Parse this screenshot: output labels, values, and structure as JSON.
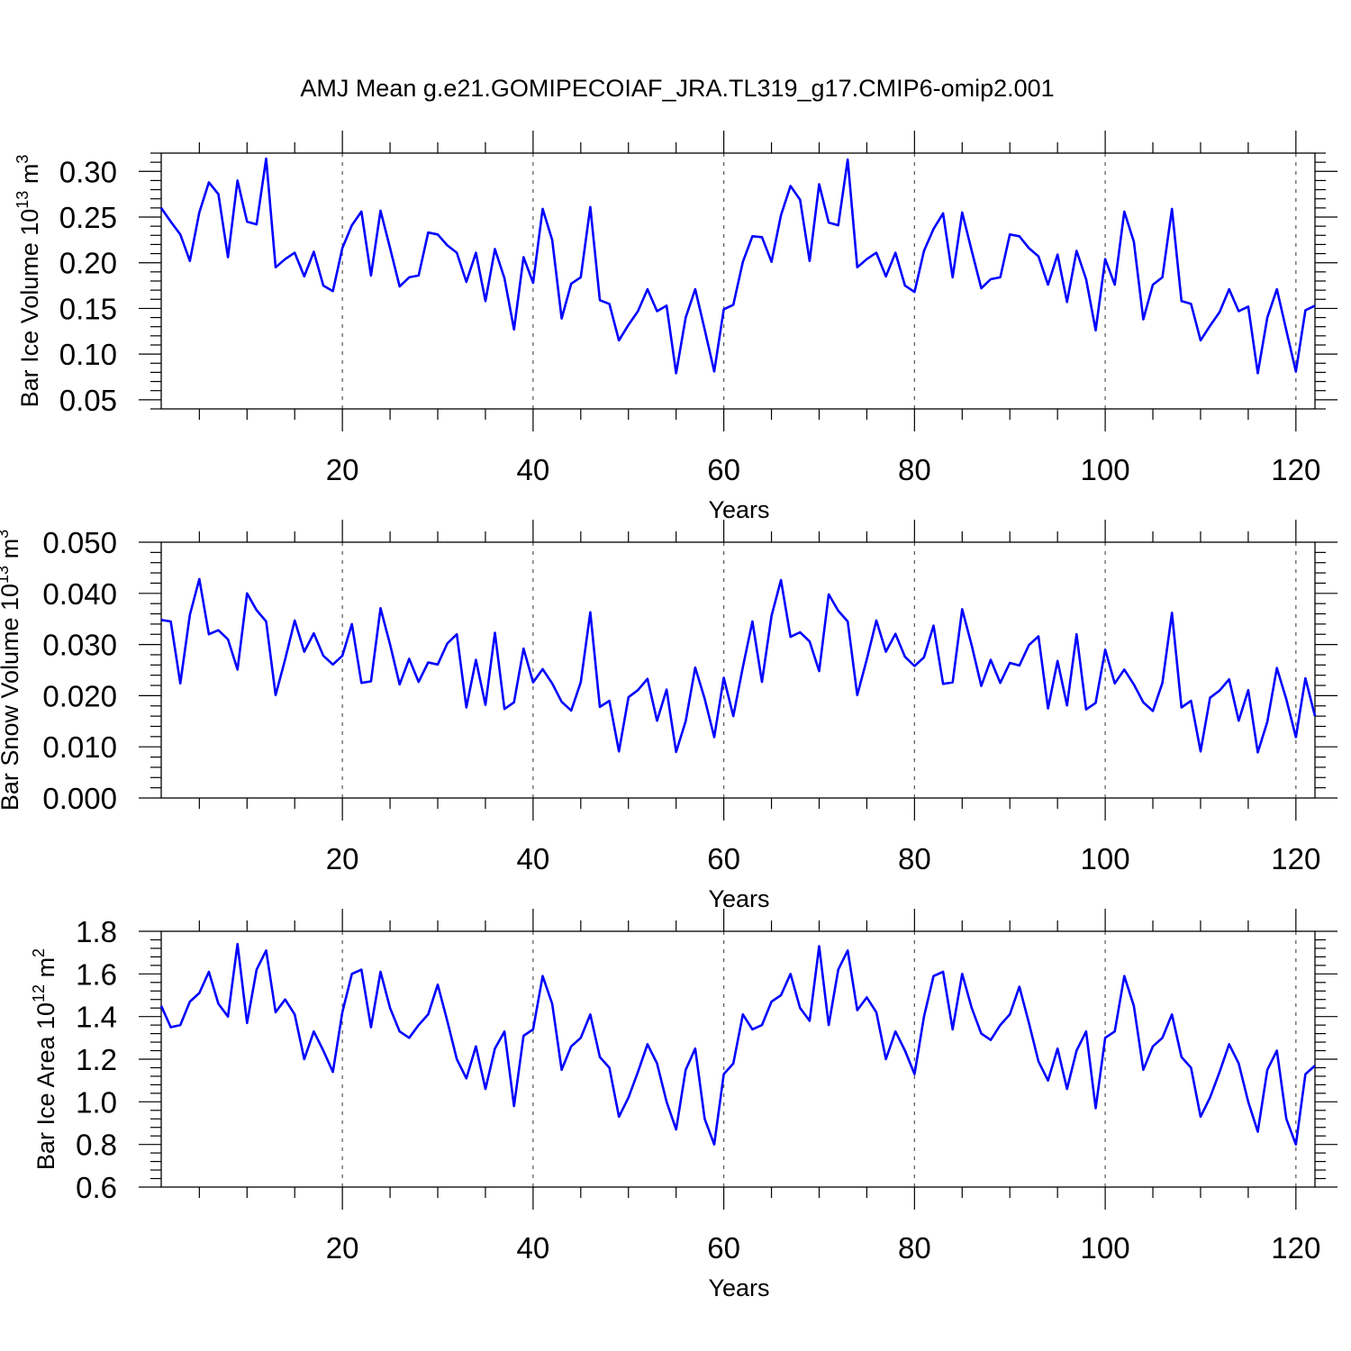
{
  "figure": {
    "title": "AMJ Mean g.e21.GOMIPECOIAF_JRA.TL319_g17.CMIP6-omip2.001"
  },
  "chart_data": [
    {
      "type": "line",
      "title": "",
      "xlabel": "Years",
      "ylabel": "Bar Ice Volume 10",
      "ylabel_exp": "13",
      "ylabel_unit": "m",
      "ylabel_unit_exp": "3",
      "xlim": [
        1,
        122
      ],
      "ylim": [
        0.04,
        0.32
      ],
      "xticks": [
        20,
        40,
        60,
        80,
        100,
        120
      ],
      "xtick_labels": [
        "20",
        "40",
        "60",
        "80",
        "100",
        "120"
      ],
      "yticks": [
        0.05,
        0.1,
        0.15,
        0.2,
        0.25,
        0.3
      ],
      "ytick_labels": [
        "0.05",
        "0.10",
        "0.15",
        "0.20",
        "0.25",
        "0.30"
      ],
      "grid": "dashed vertical lines at major x ticks",
      "series": [
        {
          "color": "#0000ff",
          "x_start": 1,
          "values": [
            0.26,
            0.245,
            0.231,
            0.202,
            0.255,
            0.288,
            0.275,
            0.206,
            0.29,
            0.245,
            0.242,
            0.314,
            0.195,
            0.204,
            0.211,
            0.185,
            0.212,
            0.175,
            0.169,
            0.216,
            0.241,
            0.256,
            0.186,
            0.257,
            0.216,
            0.174,
            0.184,
            0.186,
            0.233,
            0.231,
            0.219,
            0.211,
            0.179,
            0.211,
            0.158,
            0.215,
            0.183,
            0.127,
            0.206,
            0.178,
            0.259,
            0.225,
            0.139,
            0.177,
            0.184,
            0.261,
            0.159,
            0.155,
            0.115,
            0.132,
            0.147,
            0.171,
            0.147,
            0.153,
            0.079,
            0.14,
            0.171,
            0.127,
            0.081,
            0.149,
            0.154,
            0.201,
            0.229,
            0.228,
            0.201,
            0.252,
            0.284,
            0.269,
            0.202,
            0.286,
            0.244,
            0.241,
            0.313,
            0.195,
            0.204,
            0.211,
            0.185,
            0.211,
            0.175,
            0.168,
            0.213,
            0.237,
            0.254,
            0.184,
            0.255,
            0.213,
            0.172,
            0.182,
            0.184,
            0.231,
            0.229,
            0.216,
            0.207,
            0.176,
            0.209,
            0.157,
            0.213,
            0.182,
            0.126,
            0.204,
            0.176,
            0.256,
            0.223,
            0.138,
            0.176,
            0.184,
            0.259,
            0.158,
            0.155,
            0.115,
            0.131,
            0.146,
            0.171,
            0.147,
            0.152,
            0.079,
            0.14,
            0.171,
            0.126,
            0.081,
            0.148,
            0.153
          ]
        }
      ]
    },
    {
      "type": "line",
      "title": "",
      "xlabel": "Years",
      "ylabel": "Bar Snow Volume 10",
      "ylabel_exp": "13",
      "ylabel_unit": "m",
      "ylabel_unit_exp": "3",
      "xlim": [
        1,
        122
      ],
      "ylim": [
        0.0,
        0.05
      ],
      "xticks": [
        20,
        40,
        60,
        80,
        100,
        120
      ],
      "xtick_labels": [
        "20",
        "40",
        "60",
        "80",
        "100",
        "120"
      ],
      "yticks": [
        0.0,
        0.01,
        0.02,
        0.03,
        0.04,
        0.05
      ],
      "ytick_labels": [
        "0.000",
        "0.010",
        "0.020",
        "0.030",
        "0.040",
        "0.050"
      ],
      "grid": "dashed vertical lines at major x ticks",
      "series": [
        {
          "color": "#0000ff",
          "x_start": 1,
          "values": [
            0.0348,
            0.0345,
            0.0224,
            0.0358,
            0.0428,
            0.032,
            0.0328,
            0.031,
            0.0251,
            0.04,
            0.0367,
            0.0345,
            0.0201,
            0.0271,
            0.0347,
            0.0286,
            0.0322,
            0.0278,
            0.0261,
            0.0278,
            0.034,
            0.0225,
            0.0228,
            0.0371,
            0.03,
            0.0222,
            0.0272,
            0.0227,
            0.0265,
            0.0261,
            0.0302,
            0.032,
            0.0177,
            0.027,
            0.0182,
            0.0323,
            0.0174,
            0.0187,
            0.0292,
            0.0226,
            0.0252,
            0.0224,
            0.0188,
            0.0171,
            0.0226,
            0.0363,
            0.0178,
            0.019,
            0.0091,
            0.0197,
            0.0211,
            0.0233,
            0.0151,
            0.0212,
            0.009,
            0.015,
            0.0255,
            0.0194,
            0.0119,
            0.0235,
            0.016,
            0.0256,
            0.0345,
            0.0227,
            0.0356,
            0.0426,
            0.0315,
            0.0324,
            0.0306,
            0.0248,
            0.0398,
            0.0366,
            0.0345,
            0.0201,
            0.0271,
            0.0347,
            0.0286,
            0.0321,
            0.0276,
            0.0258,
            0.0275,
            0.0337,
            0.0223,
            0.0226,
            0.0369,
            0.0298,
            0.0219,
            0.027,
            0.0225,
            0.0264,
            0.0259,
            0.0299,
            0.0316,
            0.0175,
            0.0268,
            0.0181,
            0.032,
            0.0173,
            0.0186,
            0.029,
            0.0224,
            0.0251,
            0.0222,
            0.0187,
            0.017,
            0.0225,
            0.0362,
            0.0177,
            0.019,
            0.0091,
            0.0196,
            0.021,
            0.0232,
            0.0151,
            0.0211,
            0.0089,
            0.0149,
            0.0254,
            0.0193,
            0.0119,
            0.0234,
            0.016
          ]
        }
      ]
    },
    {
      "type": "line",
      "title": "",
      "xlabel": "Years",
      "ylabel": "Bar Ice Area 10",
      "ylabel_exp": "12",
      "ylabel_unit": "m",
      "ylabel_unit_exp": "2",
      "xlim": [
        1,
        122
      ],
      "ylim": [
        0.6,
        1.8
      ],
      "xticks": [
        20,
        40,
        60,
        80,
        100,
        120
      ],
      "xtick_labels": [
        "20",
        "40",
        "60",
        "80",
        "100",
        "120"
      ],
      "yticks": [
        0.6,
        0.8,
        1.0,
        1.2,
        1.4,
        1.6,
        1.8
      ],
      "ytick_labels": [
        "0.6",
        "0.8",
        "1.0",
        "1.2",
        "1.4",
        "1.6",
        "1.8"
      ],
      "grid": "dashed vertical lines at major x ticks",
      "series": [
        {
          "color": "#0000ff",
          "x_start": 1,
          "values": [
            1.45,
            1.35,
            1.36,
            1.47,
            1.51,
            1.61,
            1.46,
            1.4,
            1.74,
            1.37,
            1.62,
            1.71,
            1.42,
            1.48,
            1.41,
            1.2,
            1.33,
            1.24,
            1.14,
            1.42,
            1.6,
            1.62,
            1.35,
            1.61,
            1.44,
            1.33,
            1.3,
            1.36,
            1.41,
            1.55,
            1.38,
            1.2,
            1.11,
            1.26,
            1.06,
            1.25,
            1.33,
            0.98,
            1.31,
            1.34,
            1.59,
            1.46,
            1.15,
            1.26,
            1.3,
            1.41,
            1.21,
            1.16,
            0.93,
            1.02,
            1.14,
            1.27,
            1.18,
            1.0,
            0.87,
            1.15,
            1.25,
            0.92,
            0.8,
            1.13,
            1.18,
            1.41,
            1.34,
            1.36,
            1.47,
            1.5,
            1.6,
            1.44,
            1.38,
            1.73,
            1.36,
            1.62,
            1.71,
            1.43,
            1.49,
            1.42,
            1.2,
            1.33,
            1.24,
            1.13,
            1.4,
            1.59,
            1.61,
            1.34,
            1.6,
            1.44,
            1.32,
            1.29,
            1.36,
            1.41,
            1.54,
            1.37,
            1.19,
            1.1,
            1.25,
            1.06,
            1.24,
            1.33,
            0.97,
            1.3,
            1.33,
            1.59,
            1.45,
            1.15,
            1.26,
            1.3,
            1.41,
            1.21,
            1.16,
            0.93,
            1.02,
            1.14,
            1.27,
            1.18,
            1.0,
            0.86,
            1.15,
            1.24,
            0.92,
            0.8,
            1.13,
            1.17
          ]
        }
      ]
    }
  ]
}
